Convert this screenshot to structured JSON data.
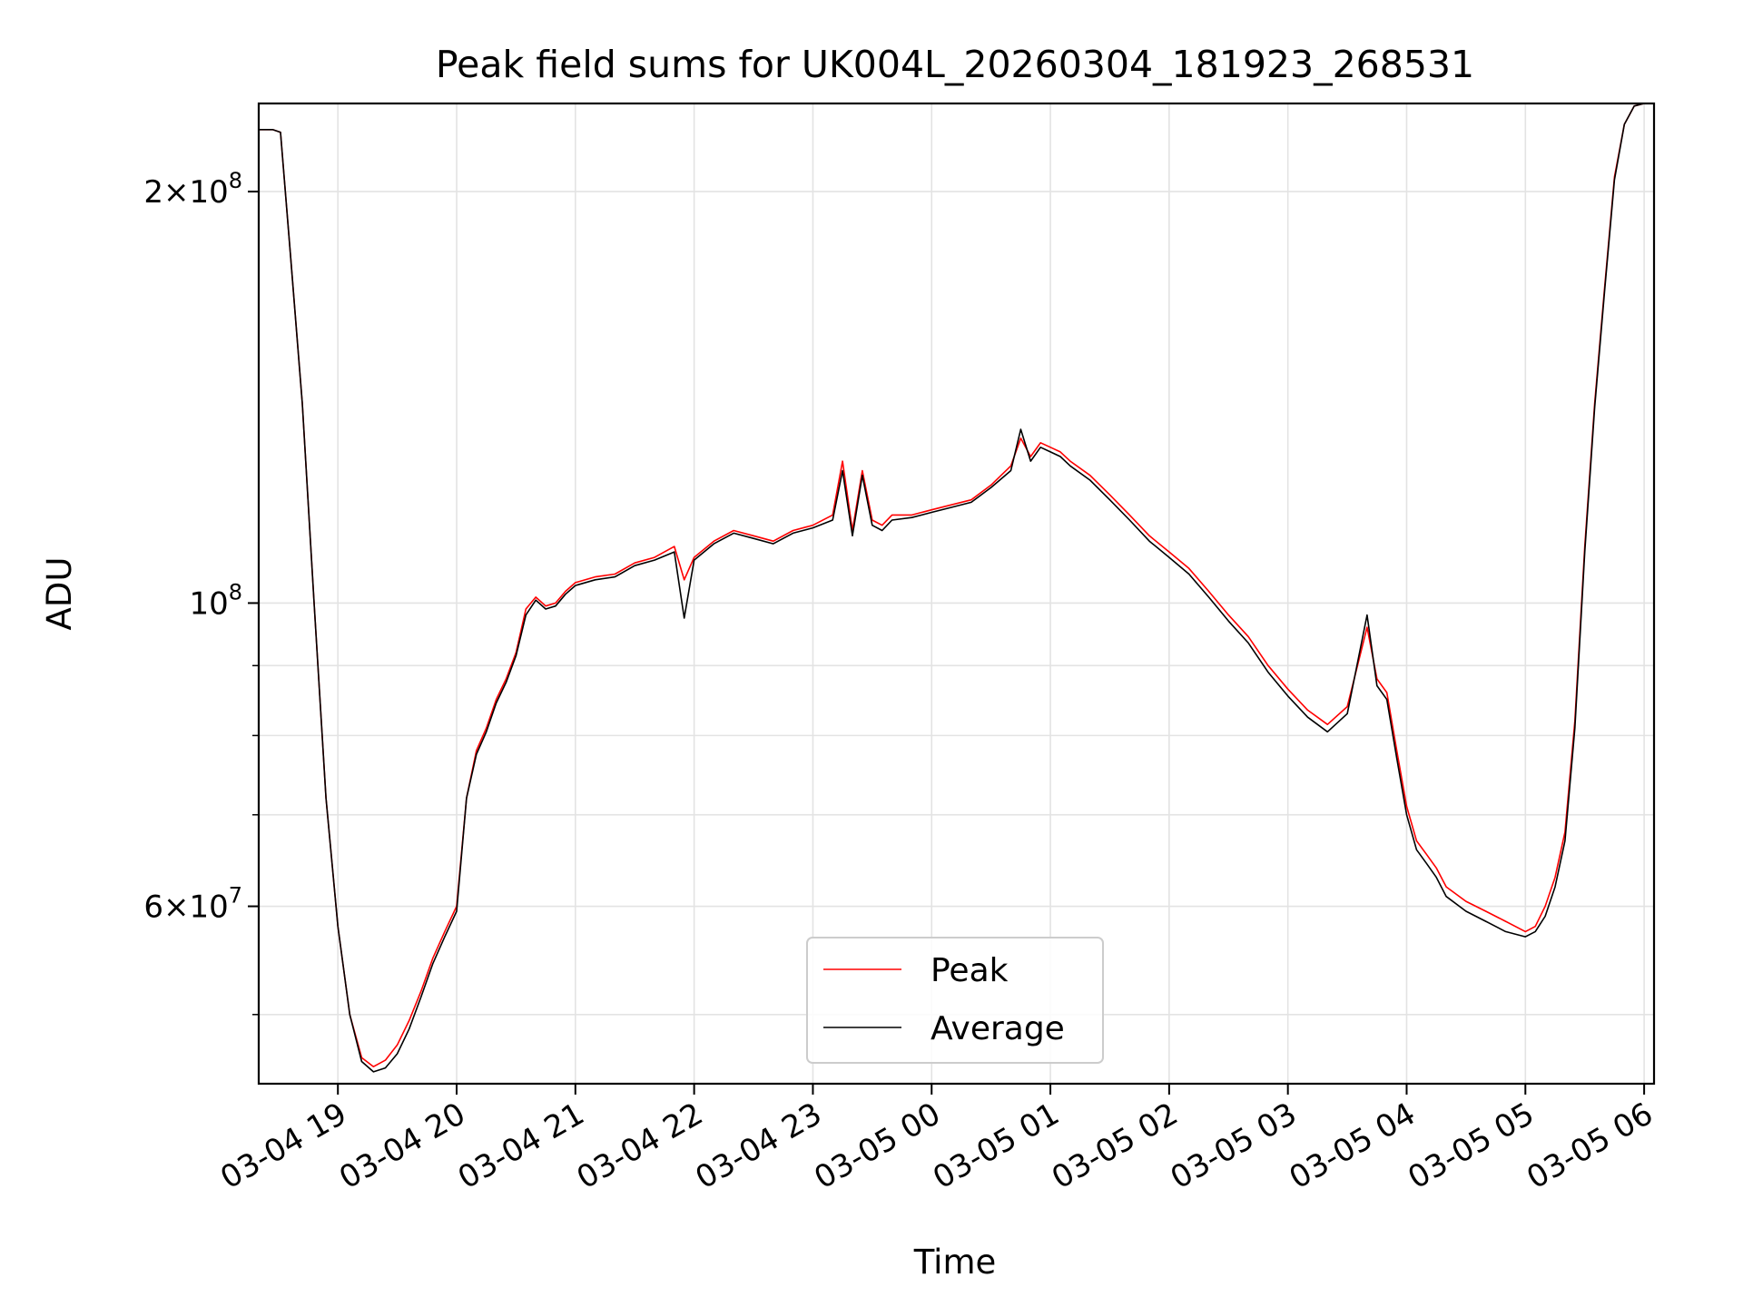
{
  "chart_data": {
    "type": "line",
    "title": "Peak field sums for UK004L_20260304_181923_268531",
    "xlabel": "Time",
    "ylabel": "ADU",
    "yscale": "log",
    "xlim": [
      "2026-03-04T18:20",
      "2026-03-05T06:05"
    ],
    "ylim": [
      44500000,
      232000000
    ],
    "grid": true,
    "legend_position": "lower center",
    "x_ticks": [
      {
        "value": "2026-03-04T19:00",
        "label": "03-04 19"
      },
      {
        "value": "2026-03-04T20:00",
        "label": "03-04 20"
      },
      {
        "value": "2026-03-04T21:00",
        "label": "03-04 21"
      },
      {
        "value": "2026-03-04T22:00",
        "label": "03-04 22"
      },
      {
        "value": "2026-03-04T23:00",
        "label": "03-04 23"
      },
      {
        "value": "2026-03-05T00:00",
        "label": "03-05 00"
      },
      {
        "value": "2026-03-05T01:00",
        "label": "03-05 01"
      },
      {
        "value": "2026-03-05T02:00",
        "label": "03-05 02"
      },
      {
        "value": "2026-03-05T03:00",
        "label": "03-05 03"
      },
      {
        "value": "2026-03-05T04:00",
        "label": "03-05 04"
      },
      {
        "value": "2026-03-05T05:00",
        "label": "03-05 05"
      },
      {
        "value": "2026-03-05T06:00",
        "label": "03-05 06"
      }
    ],
    "y_ticks_major": [
      {
        "value": 60000000,
        "mantissa": "6",
        "exponent": "7"
      },
      {
        "value": 100000000,
        "mantissa": "",
        "exponent": "8"
      },
      {
        "value": 200000000,
        "mantissa": "2",
        "exponent": "8"
      }
    ],
    "y_ticks_minor": [
      50000000,
      70000000,
      80000000,
      90000000
    ],
    "series": [
      {
        "name": "Peak",
        "color": "#ff0000",
        "x": [
          "2026-03-04T18:20",
          "2026-03-04T18:27",
          "2026-03-04T18:31",
          "2026-03-04T18:36",
          "2026-03-04T18:42",
          "2026-03-04T18:48",
          "2026-03-04T18:54",
          "2026-03-04T19:00",
          "2026-03-04T19:06",
          "2026-03-04T19:12",
          "2026-03-04T19:18",
          "2026-03-04T19:24",
          "2026-03-04T19:30",
          "2026-03-04T19:36",
          "2026-03-04T19:42",
          "2026-03-04T19:48",
          "2026-03-04T19:54",
          "2026-03-04T20:00",
          "2026-03-04T20:05",
          "2026-03-04T20:10",
          "2026-03-04T20:15",
          "2026-03-04T20:20",
          "2026-03-04T20:25",
          "2026-03-04T20:30",
          "2026-03-04T20:35",
          "2026-03-04T20:40",
          "2026-03-04T20:45",
          "2026-03-04T20:50",
          "2026-03-04T20:55",
          "2026-03-04T21:00",
          "2026-03-04T21:10",
          "2026-03-04T21:20",
          "2026-03-04T21:30",
          "2026-03-04T21:40",
          "2026-03-04T21:50",
          "2026-03-04T21:55",
          "2026-03-04T22:00",
          "2026-03-04T22:10",
          "2026-03-04T22:20",
          "2026-03-04T22:30",
          "2026-03-04T22:40",
          "2026-03-04T22:50",
          "2026-03-04T23:00",
          "2026-03-04T23:10",
          "2026-03-04T23:15",
          "2026-03-04T23:20",
          "2026-03-04T23:25",
          "2026-03-04T23:30",
          "2026-03-04T23:35",
          "2026-03-04T23:40",
          "2026-03-04T23:50",
          "2026-03-05T00:00",
          "2026-03-05T00:10",
          "2026-03-05T00:20",
          "2026-03-05T00:30",
          "2026-03-05T00:40",
          "2026-03-05T00:45",
          "2026-03-05T00:50",
          "2026-03-05T00:55",
          "2026-03-05T01:00",
          "2026-03-05T01:05",
          "2026-03-05T01:10",
          "2026-03-05T01:20",
          "2026-03-05T01:30",
          "2026-03-05T01:40",
          "2026-03-05T01:50",
          "2026-03-05T02:00",
          "2026-03-05T02:10",
          "2026-03-05T02:20",
          "2026-03-05T02:30",
          "2026-03-05T02:40",
          "2026-03-05T02:50",
          "2026-03-05T03:00",
          "2026-03-05T03:10",
          "2026-03-05T03:20",
          "2026-03-05T03:30",
          "2026-03-05T03:40",
          "2026-03-05T03:45",
          "2026-03-05T03:50",
          "2026-03-05T03:55",
          "2026-03-05T04:00",
          "2026-03-05T04:05",
          "2026-03-05T04:10",
          "2026-03-05T04:15",
          "2026-03-05T04:20",
          "2026-03-05T04:30",
          "2026-03-05T04:40",
          "2026-03-05T04:50",
          "2026-03-05T05:00",
          "2026-03-05T05:05",
          "2026-03-05T05:10",
          "2026-03-05T05:15",
          "2026-03-05T05:20",
          "2026-03-05T05:25",
          "2026-03-05T05:30",
          "2026-03-05T05:35",
          "2026-03-05T05:40",
          "2026-03-05T05:45",
          "2026-03-05T05:50",
          "2026-03-05T05:55",
          "2026-03-05T06:00",
          "2026-03-05T06:05"
        ],
        "y": [
          222000000,
          222000000,
          221000000,
          180000000,
          140000000,
          100000000,
          72000000,
          58000000,
          50000000,
          46500000,
          45800000,
          46300000,
          47500000,
          49500000,
          52000000,
          55000000,
          57500000,
          60000000,
          72000000,
          78000000,
          81000000,
          85000000,
          88000000,
          92000000,
          99000000,
          101000000,
          99500000,
          100000000,
          102000000,
          103500000,
          104500000,
          105000000,
          107000000,
          108000000,
          110000000,
          104000000,
          108000000,
          111000000,
          113000000,
          112000000,
          111000000,
          113000000,
          114000000,
          116000000,
          127000000,
          113000000,
          125000000,
          115000000,
          114000000,
          116000000,
          116000000,
          117000000,
          118000000,
          119000000,
          122000000,
          126000000,
          132000000,
          128000000,
          131000000,
          130000000,
          129000000,
          127000000,
          124000000,
          120000000,
          116000000,
          112000000,
          109000000,
          106000000,
          102000000,
          98000000,
          94500000,
          90000000,
          86500000,
          83500000,
          81500000,
          84000000,
          96000000,
          88000000,
          86000000,
          78000000,
          71000000,
          67000000,
          65500000,
          64000000,
          62000000,
          60500000,
          59500000,
          58500000,
          57500000,
          58000000,
          60000000,
          63000000,
          68000000,
          82000000,
          110000000,
          140000000,
          170000000,
          205000000,
          224000000,
          231000000,
          232000000,
          232000000
        ]
      },
      {
        "name": "Average",
        "color": "#000000",
        "x": [
          "2026-03-04T18:20",
          "2026-03-04T18:27",
          "2026-03-04T18:31",
          "2026-03-04T18:36",
          "2026-03-04T18:42",
          "2026-03-04T18:48",
          "2026-03-04T18:54",
          "2026-03-04T19:00",
          "2026-03-04T19:06",
          "2026-03-04T19:12",
          "2026-03-04T19:18",
          "2026-03-04T19:24",
          "2026-03-04T19:30",
          "2026-03-04T19:36",
          "2026-03-04T19:42",
          "2026-03-04T19:48",
          "2026-03-04T19:54",
          "2026-03-04T20:00",
          "2026-03-04T20:05",
          "2026-03-04T20:10",
          "2026-03-04T20:15",
          "2026-03-04T20:20",
          "2026-03-04T20:25",
          "2026-03-04T20:30",
          "2026-03-04T20:35",
          "2026-03-04T20:40",
          "2026-03-04T20:45",
          "2026-03-04T20:50",
          "2026-03-04T20:55",
          "2026-03-04T21:00",
          "2026-03-04T21:10",
          "2026-03-04T21:20",
          "2026-03-04T21:30",
          "2026-03-04T21:40",
          "2026-03-04T21:50",
          "2026-03-04T21:55",
          "2026-03-04T22:00",
          "2026-03-04T22:10",
          "2026-03-04T22:20",
          "2026-03-04T22:30",
          "2026-03-04T22:40",
          "2026-03-04T22:50",
          "2026-03-04T23:00",
          "2026-03-04T23:10",
          "2026-03-04T23:15",
          "2026-03-04T23:20",
          "2026-03-04T23:25",
          "2026-03-04T23:30",
          "2026-03-04T23:35",
          "2026-03-04T23:40",
          "2026-03-04T23:50",
          "2026-03-05T00:00",
          "2026-03-05T00:10",
          "2026-03-05T00:20",
          "2026-03-05T00:30",
          "2026-03-05T00:40",
          "2026-03-05T00:45",
          "2026-03-05T00:50",
          "2026-03-05T00:55",
          "2026-03-05T01:00",
          "2026-03-05T01:05",
          "2026-03-05T01:10",
          "2026-03-05T01:20",
          "2026-03-05T01:30",
          "2026-03-05T01:40",
          "2026-03-05T01:50",
          "2026-03-05T02:00",
          "2026-03-05T02:10",
          "2026-03-05T02:20",
          "2026-03-05T02:30",
          "2026-03-05T02:40",
          "2026-03-05T02:50",
          "2026-03-05T03:00",
          "2026-03-05T03:10",
          "2026-03-05T03:20",
          "2026-03-05T03:30",
          "2026-03-05T03:40",
          "2026-03-05T03:45",
          "2026-03-05T03:50",
          "2026-03-05T03:55",
          "2026-03-05T04:00",
          "2026-03-05T04:05",
          "2026-03-05T04:10",
          "2026-03-05T04:15",
          "2026-03-05T04:20",
          "2026-03-05T04:30",
          "2026-03-05T04:40",
          "2026-03-05T04:50",
          "2026-03-05T05:00",
          "2026-03-05T05:05",
          "2026-03-05T05:10",
          "2026-03-05T05:15",
          "2026-03-05T05:20",
          "2026-03-05T05:25",
          "2026-03-05T05:30",
          "2026-03-05T05:35",
          "2026-03-05T05:40",
          "2026-03-05T05:45",
          "2026-03-05T05:50",
          "2026-03-05T05:55",
          "2026-03-05T06:00",
          "2026-03-05T06:05"
        ],
        "y": [
          222000000,
          222000000,
          221000000,
          180000000,
          140000000,
          100000000,
          72000000,
          58000000,
          50000000,
          46200000,
          45400000,
          45700000,
          46800000,
          48800000,
          51500000,
          54500000,
          57000000,
          59500000,
          72000000,
          77500000,
          80500000,
          84500000,
          87500000,
          91500000,
          98000000,
          100500000,
          99000000,
          99500000,
          101500000,
          103000000,
          104000000,
          104500000,
          106500000,
          107500000,
          109000000,
          97500000,
          107500000,
          110500000,
          112500000,
          111500000,
          110500000,
          112500000,
          113500000,
          115000000,
          125000000,
          112000000,
          124000000,
          114000000,
          113000000,
          115000000,
          115500000,
          116500000,
          117500000,
          118500000,
          121500000,
          125000000,
          134000000,
          127000000,
          130000000,
          129000000,
          128000000,
          126000000,
          123000000,
          119000000,
          115000000,
          111000000,
          108000000,
          105000000,
          101000000,
          97000000,
          93500000,
          89000000,
          85500000,
          82500000,
          80500000,
          83000000,
          98000000,
          87000000,
          85000000,
          77000000,
          70000000,
          66000000,
          64500000,
          63000000,
          61000000,
          59500000,
          58500000,
          57500000,
          57000000,
          57500000,
          59000000,
          62000000,
          67000000,
          81000000,
          109000000,
          139000000,
          169000000,
          204000000,
          224000000,
          231000000,
          232000000,
          232000000
        ]
      }
    ]
  }
}
